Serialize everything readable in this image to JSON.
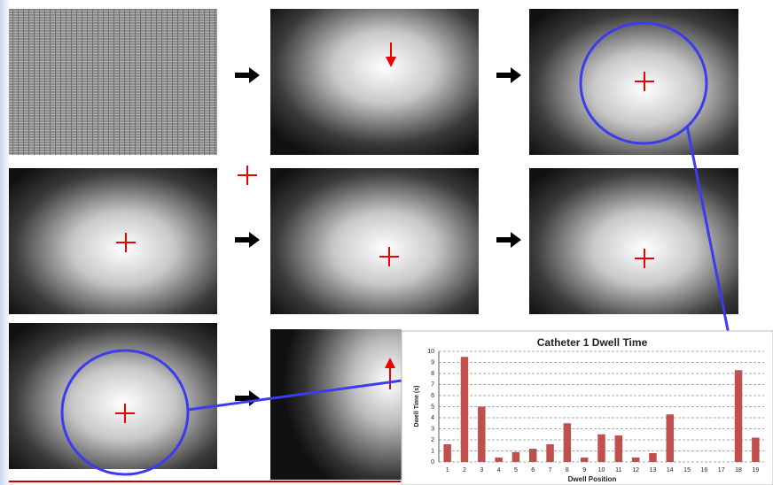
{
  "chart_data": {
    "type": "bar",
    "title": "Catheter 1 Dwell Time",
    "x_label": "Dwell Position",
    "y_label": "Dwell Time (s)",
    "categories": [
      "1",
      "2",
      "3",
      "4",
      "5",
      "6",
      "7",
      "8",
      "9",
      "10",
      "11",
      "12",
      "13",
      "14",
      "15",
      "16",
      "17",
      "18",
      "19"
    ],
    "values": [
      1.6,
      9.5,
      5.0,
      0.4,
      0.9,
      1.2,
      1.6,
      3.5,
      0.4,
      2.5,
      2.4,
      0.4,
      0.8,
      4.3,
      0,
      0,
      0,
      8.3,
      2.2
    ],
    "color": "#c0504d",
    "ylim": [
      0,
      10
    ],
    "yticks": [
      0,
      1,
      2,
      3,
      4,
      5,
      6,
      7,
      8,
      9,
      10
    ],
    "grid": true
  }
}
